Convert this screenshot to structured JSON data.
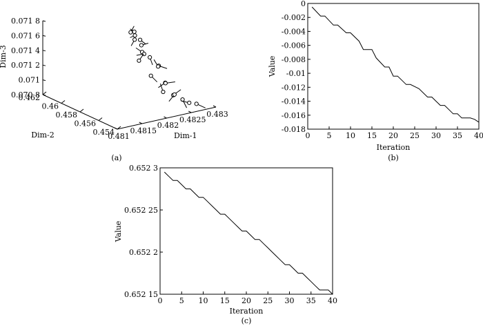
{
  "chart_data": [
    {
      "id": "a",
      "type": "scatter",
      "caption": "(a)",
      "xlabel": "Dim-1",
      "ylabel": "Dim-2",
      "zlabel": "Dim-3",
      "xticks": [
        "0.481",
        "0.4815",
        "0.482",
        "0.4825",
        "0.483"
      ],
      "yticks": [
        "0.454",
        "0.456",
        "0.458",
        "0.46",
        "0.462"
      ],
      "zticks": [
        "0.070 8",
        "0.071",
        "0.071 2",
        "0.071 4",
        "0.071 6",
        "0.071 8"
      ],
      "xlim": [
        0.481,
        0.483
      ],
      "ylim": [
        0.454,
        0.462
      ],
      "zlim": [
        0.0708,
        0.0718
      ],
      "points": [
        {
          "x": 0.4821,
          "y": 0.458,
          "z": 0.07172
        },
        {
          "x": 0.48212,
          "y": 0.4585,
          "z": 0.07168
        },
        {
          "x": 0.48215,
          "y": 0.4582,
          "z": 0.07165
        },
        {
          "x": 0.48218,
          "y": 0.4578,
          "z": 0.07161
        },
        {
          "x": 0.48222,
          "y": 0.4586,
          "z": 0.07156
        },
        {
          "x": 0.4823,
          "y": 0.4583,
          "z": 0.07149
        },
        {
          "x": 0.48224,
          "y": 0.4579,
          "z": 0.07143
        },
        {
          "x": 0.48232,
          "y": 0.4575,
          "z": 0.07137
        },
        {
          "x": 0.48245,
          "y": 0.4588,
          "z": 0.07132
        },
        {
          "x": 0.48227,
          "y": 0.4584,
          "z": 0.07128
        },
        {
          "x": 0.48252,
          "y": 0.4576,
          "z": 0.07122
        },
        {
          "x": 0.48262,
          "y": 0.4582,
          "z": 0.07116
        },
        {
          "x": 0.48238,
          "y": 0.4577,
          "z": 0.0711
        },
        {
          "x": 0.4825,
          "y": 0.4568,
          "z": 0.07104
        },
        {
          "x": 0.4826,
          "y": 0.4573,
          "z": 0.07099
        },
        {
          "x": 0.48242,
          "y": 0.4566,
          "z": 0.07094
        },
        {
          "x": 0.48255,
          "y": 0.4562,
          "z": 0.0709
        },
        {
          "x": 0.48265,
          "y": 0.4566,
          "z": 0.07087
        },
        {
          "x": 0.4827,
          "y": 0.456,
          "z": 0.07083
        },
        {
          "x": 0.48276,
          "y": 0.4556,
          "z": 0.0708
        },
        {
          "x": 0.48285,
          "y": 0.4553,
          "z": 0.07079
        }
      ]
    },
    {
      "id": "b",
      "type": "line",
      "caption": "(b)",
      "xlabel": "Iteration",
      "ylabel": "Value",
      "xlim": [
        0,
        40
      ],
      "ylim": [
        -0.018,
        0
      ],
      "xticks": [
        "0",
        "5",
        "10",
        "15",
        "20",
        "25",
        "30",
        "35",
        "40"
      ],
      "yticks": [
        "-0.018",
        "-0.016",
        "-0.014",
        "-0.012",
        "-0.01",
        "-0.008",
        "-0.006",
        "-0.004",
        "-0.002",
        "0"
      ],
      "x": [
        1,
        3,
        4,
        6,
        7,
        9,
        10,
        12,
        13,
        15,
        16,
        18,
        19,
        20,
        21,
        22,
        23,
        24,
        26,
        28,
        29,
        30,
        31,
        32,
        33,
        34,
        35,
        36,
        37,
        38,
        39,
        40
      ],
      "y": [
        -0.0005,
        -0.0018,
        -0.0018,
        -0.0031,
        -0.0031,
        -0.0042,
        -0.0042,
        -0.0054,
        -0.0066,
        -0.0066,
        -0.0078,
        -0.0091,
        -0.0091,
        -0.0104,
        -0.0104,
        -0.011,
        -0.0116,
        -0.0116,
        -0.0122,
        -0.0134,
        -0.0134,
        -0.014,
        -0.0146,
        -0.0146,
        -0.0152,
        -0.0158,
        -0.0158,
        -0.0164,
        -0.0164,
        -0.0164,
        -0.0166,
        -0.017
      ]
    },
    {
      "id": "c",
      "type": "line",
      "caption": "(c)",
      "xlabel": "Iteration",
      "ylabel": "Value",
      "xlim": [
        0,
        40
      ],
      "ylim": [
        0.65215,
        0.6523
      ],
      "xticks": [
        "0",
        "5",
        "10",
        "15",
        "20",
        "25",
        "30",
        "35",
        "40"
      ],
      "yticks": [
        "0.652 15",
        "0.652 2",
        "0.652 25",
        "0.652 3"
      ],
      "x": [
        1,
        2,
        3,
        4,
        5,
        6,
        7,
        8,
        9,
        10,
        11,
        12,
        13,
        14,
        15,
        16,
        17,
        18,
        19,
        20,
        21,
        22,
        23,
        24,
        25,
        26,
        27,
        28,
        29,
        30,
        31,
        32,
        33,
        34,
        35,
        36,
        37,
        38,
        39,
        40
      ],
      "y": [
        0.652295,
        0.65229,
        0.652285,
        0.652285,
        0.65228,
        0.652275,
        0.652275,
        0.65227,
        0.652265,
        0.652265,
        0.65226,
        0.652255,
        0.65225,
        0.652245,
        0.652245,
        0.65224,
        0.652235,
        0.65223,
        0.652225,
        0.652225,
        0.65222,
        0.652215,
        0.652215,
        0.65221,
        0.652205,
        0.6522,
        0.652195,
        0.65219,
        0.652185,
        0.652185,
        0.65218,
        0.652175,
        0.652175,
        0.65217,
        0.652165,
        0.65216,
        0.652155,
        0.652155,
        0.652155,
        0.65215
      ]
    }
  ]
}
